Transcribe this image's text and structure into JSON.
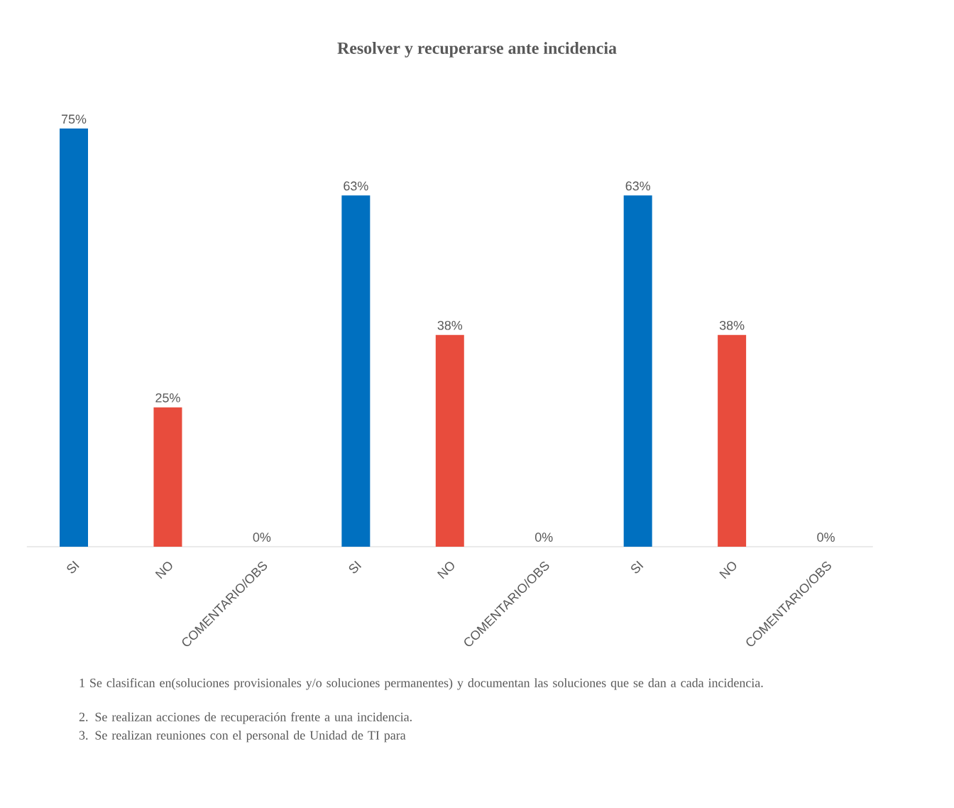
{
  "chart_data": {
    "type": "bar",
    "title": "Resolver y recuperarse ante incidencia",
    "categories": [
      "SI",
      "NO",
      "COMENTARIO/OBS",
      "SI",
      "NO",
      "COMENTARIO/OBS",
      "SI",
      "NO",
      "COMENTARIO/OBS"
    ],
    "values": [
      75,
      25,
      0,
      63,
      38,
      0,
      63,
      38,
      0
    ],
    "value_labels": [
      "75%",
      "25%",
      "0%",
      "63%",
      "38%",
      "0%",
      "63%",
      "38%",
      "0%"
    ],
    "colors": [
      "#0070c0",
      "#e84c3d",
      "#0070c0",
      "#0070c0",
      "#e84c3d",
      "#0070c0",
      "#0070c0",
      "#e84c3d",
      "#0070c0"
    ],
    "annotations": [
      "1 Se clasifican en(soluciones provisionales y/o soluciones permanentes) y documentan las soluciones que se dan a cada incidencia.",
      "2. Se realizan acciones de recuperación frente a una incidencia.",
      "3. Se realizan reuniones con el personal de Unidad de TI para"
    ]
  }
}
